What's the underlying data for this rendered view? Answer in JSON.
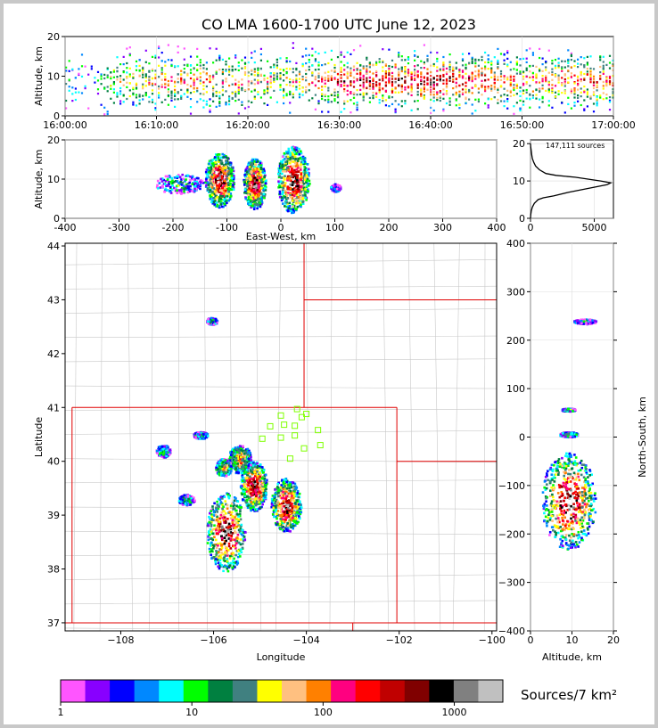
{
  "title": "CO LMA 1600-1700 UTC June 12, 2023",
  "colorbar_label": "Sources/7 km²",
  "colorbar_ticks": [
    "1",
    "10",
    "100",
    "1000"
  ],
  "colorbar_colors": [
    "#ff55ff",
    "#8800ff",
    "#0000ff",
    "#0088ff",
    "#00ffff",
    "#00ff00",
    "#008040",
    "#408080",
    "#ffff00",
    "#ffc080",
    "#ff8000",
    "#ff0080",
    "#ff0000",
    "#c00000",
    "#800000",
    "#000000",
    "#808080",
    "#c0c0c0",
    "#ffffff"
  ],
  "sources_label": "147,111 sources",
  "chart_data": [
    {
      "id": "time-height",
      "type": "heatmap",
      "xlabel": "",
      "ylabel": "Altitude, km",
      "xticks": [
        "16:00:00",
        "16:10:00",
        "16:20:00",
        "16:30:00",
        "16:40:00",
        "16:50:00",
        "17:00:00"
      ],
      "yticks": [
        0,
        10,
        20
      ],
      "xlim_minutes": [
        0,
        60
      ],
      "ylim": [
        0,
        20
      ],
      "activity": [
        [
          0,
          4
        ],
        [
          3,
          1
        ],
        [
          4.5,
          5
        ],
        [
          9,
          7
        ],
        [
          18,
          7
        ],
        [
          25,
          6
        ],
        [
          30,
          9
        ],
        [
          40,
          10
        ],
        [
          45,
          9
        ],
        [
          51,
          7
        ],
        [
          55,
          8
        ],
        [
          60,
          8
        ]
      ]
    },
    {
      "id": "ew-height",
      "type": "heatmap",
      "xlabel": "East-West, km",
      "ylabel": "Altitude, km",
      "xticks": [
        -400,
        -300,
        -200,
        -100,
        0,
        100,
        200,
        300,
        400
      ],
      "yticks": [
        0,
        10,
        20
      ],
      "xlim": [
        -400,
        400
      ],
      "ylim": [
        0,
        20
      ],
      "cells": [
        [
          -115,
          10,
          18,
          14,
          1.0
        ],
        [
          -50,
          9,
          14,
          13,
          1.0
        ],
        [
          22,
          10,
          20,
          17,
          1.0
        ],
        [
          -190,
          9,
          30,
          5,
          0.3
        ],
        [
          100,
          8,
          6,
          2,
          0.15
        ]
      ]
    },
    {
      "id": "altitude-histogram",
      "type": "line",
      "xticks": [
        0,
        5000
      ],
      "yticks": [
        0,
        10,
        20
      ],
      "xlim": [
        0,
        6500
      ],
      "ylim": [
        0,
        21
      ],
      "x": [
        0,
        20,
        60,
        150,
        300,
        600,
        1000,
        1800,
        3000,
        4500,
        6000,
        6300,
        5500,
        3500,
        2000,
        1200,
        700,
        400,
        250,
        150,
        100,
        60,
        20,
        0
      ],
      "y": [
        0,
        1,
        2,
        3,
        4,
        5,
        5.5,
        6,
        7,
        8,
        9,
        9.5,
        10,
        11,
        11.5,
        12,
        13,
        14,
        15,
        16,
        17,
        18,
        19,
        20
      ]
    },
    {
      "id": "plan-view-map",
      "type": "heatmap",
      "xlabel": "Longitude",
      "ylabel": "Latitude",
      "xticks": [
        -108,
        -106,
        -104,
        -102,
        -100
      ],
      "yticks": [
        37,
        38,
        39,
        40,
        41,
        42,
        43,
        44
      ],
      "xlim": [
        -109.2,
        -99.9
      ],
      "ylim": [
        36.85,
        44.05
      ],
      "cells": [
        [
          -105.75,
          38.7,
          22,
          44,
          1.0
        ],
        [
          -105.15,
          39.55,
          15,
          28,
          1.0
        ],
        [
          -104.45,
          39.2,
          17,
          30,
          1.0
        ],
        [
          -105.45,
          40.05,
          13,
          16,
          0.7
        ],
        [
          -105.8,
          39.9,
          9,
          10,
          0.6
        ],
        [
          -107.1,
          40.2,
          8,
          7,
          0.3
        ],
        [
          -106.3,
          40.5,
          8,
          4,
          0.3
        ],
        [
          -106.6,
          39.3,
          9,
          6,
          0.3
        ],
        [
          -106.05,
          42.62,
          6,
          4,
          0.3
        ]
      ],
      "station_markers": [
        [
          -104.2,
          40.97
        ],
        [
          -104.0,
          40.88
        ],
        [
          -104.55,
          40.85
        ],
        [
          -104.1,
          40.82
        ],
        [
          -104.78,
          40.65
        ],
        [
          -104.48,
          40.68
        ],
        [
          -104.25,
          40.66
        ],
        [
          -103.75,
          40.58
        ],
        [
          -104.95,
          40.42
        ],
        [
          -104.55,
          40.44
        ],
        [
          -104.25,
          40.48
        ],
        [
          -103.7,
          40.3
        ],
        [
          -104.05,
          40.24
        ],
        [
          -104.35,
          40.05
        ]
      ]
    },
    {
      "id": "ns-height",
      "type": "heatmap",
      "xlabel": "Altitude, km",
      "ylabel": "North-South, km",
      "xticks": [
        0,
        10,
        20
      ],
      "yticks": [
        -400,
        -300,
        -200,
        -100,
        0,
        100,
        200,
        300,
        400
      ],
      "xlim": [
        0,
        20
      ],
      "ylim": [
        -400,
        400
      ],
      "cells": [
        [
          9,
          -130,
          12,
          100,
          1.0
        ],
        [
          9,
          58,
          3,
          3,
          0.5
        ],
        [
          9,
          7,
          4,
          5,
          0.5
        ],
        [
          13,
          240,
          5,
          5,
          0.2
        ]
      ]
    }
  ]
}
